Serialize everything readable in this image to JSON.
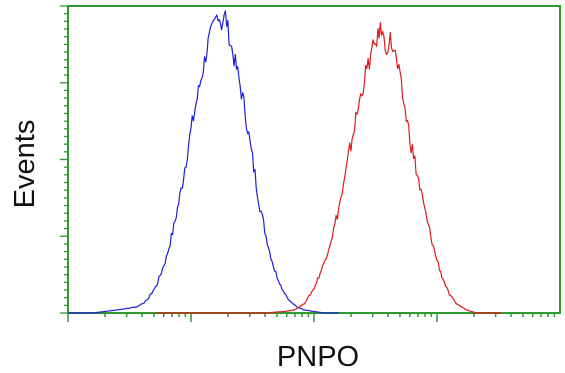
{
  "chart_data": {
    "type": "line",
    "title": "",
    "xlabel": "PNPO",
    "ylabel": "Events",
    "xscale": "log",
    "x_tick_labels": [],
    "y_tick_labels": [],
    "grid": false,
    "legend": "none",
    "xlim": [
      0,
      100
    ],
    "ylim": [
      0,
      100
    ],
    "frame_color": "#2e9a2e",
    "series": [
      {
        "color": "#1f1fd8",
        "points": [
          [
            0,
            0
          ],
          [
            5,
            0
          ],
          [
            10,
            1
          ],
          [
            14,
            2
          ],
          [
            16,
            4
          ],
          [
            18,
            9
          ],
          [
            20,
            18
          ],
          [
            21.5,
            28
          ],
          [
            23,
            40
          ],
          [
            24.5,
            55
          ],
          [
            26,
            68
          ],
          [
            27.5,
            80
          ],
          [
            28.5,
            88
          ],
          [
            29.5,
            93
          ],
          [
            30.5,
            98
          ],
          [
            31.2,
            94
          ],
          [
            32,
            97
          ],
          [
            33,
            88
          ],
          [
            34.5,
            78
          ],
          [
            36,
            66
          ],
          [
            37,
            55
          ],
          [
            38,
            45
          ],
          [
            39,
            35
          ],
          [
            40,
            27
          ],
          [
            41,
            20
          ],
          [
            42,
            14
          ],
          [
            43.5,
            8
          ],
          [
            45,
            4
          ],
          [
            46.5,
            2
          ],
          [
            48,
            1
          ],
          [
            52,
            0
          ],
          [
            55,
            0
          ]
        ]
      },
      {
        "color": "#e01a1a",
        "points": [
          [
            18,
            0
          ],
          [
            40,
            0
          ],
          [
            44,
            0.5
          ],
          [
            46,
            1
          ],
          [
            48,
            3
          ],
          [
            50,
            8
          ],
          [
            52,
            16
          ],
          [
            54,
            27
          ],
          [
            56,
            41
          ],
          [
            57.5,
            55
          ],
          [
            59,
            67
          ],
          [
            60.5,
            78
          ],
          [
            62,
            86
          ],
          [
            63,
            90
          ],
          [
            63.7,
            93
          ],
          [
            64.5,
            86
          ],
          [
            65.5,
            89
          ],
          [
            66.5,
            84
          ],
          [
            67.5,
            76
          ],
          [
            68.5,
            66
          ],
          [
            70,
            53
          ],
          [
            71.5,
            41
          ],
          [
            73,
            30
          ],
          [
            74.5,
            20
          ],
          [
            76,
            12
          ],
          [
            77.5,
            6
          ],
          [
            79,
            3
          ],
          [
            81,
            1
          ],
          [
            83,
            0
          ],
          [
            88,
            0
          ]
        ]
      }
    ]
  }
}
